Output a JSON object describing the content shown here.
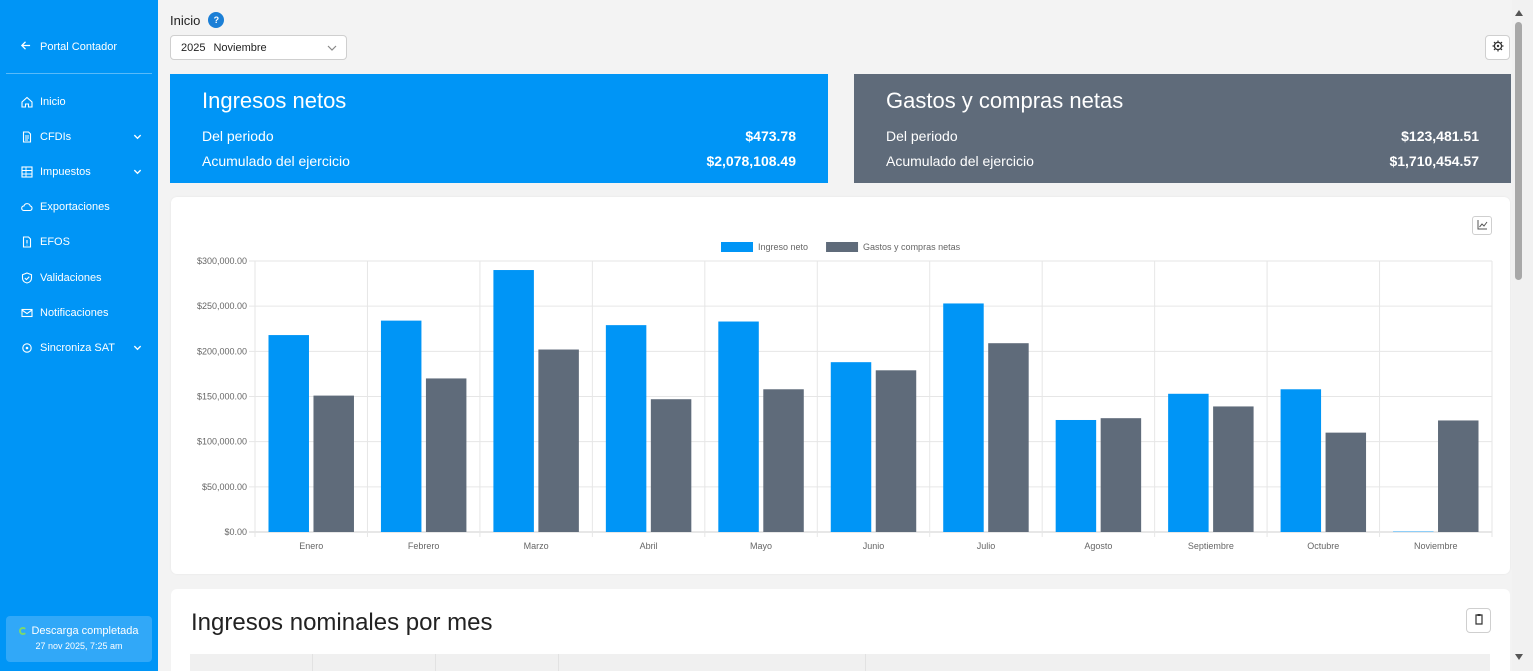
{
  "sidebar": {
    "back_label": "Portal Contador",
    "items": [
      {
        "label": "Inicio",
        "icon": "home-icon",
        "chevron": false
      },
      {
        "label": "CFDIs",
        "icon": "document-icon",
        "chevron": true
      },
      {
        "label": "Impuestos",
        "icon": "grid-icon",
        "chevron": true
      },
      {
        "label": "Exportaciones",
        "icon": "cloud-icon",
        "chevron": false
      },
      {
        "label": "EFOS",
        "icon": "file-alert-icon",
        "chevron": false
      },
      {
        "label": "Validaciones",
        "icon": "shield-check-icon",
        "chevron": false
      },
      {
        "label": "Notificaciones",
        "icon": "mail-icon",
        "chevron": false
      },
      {
        "label": "Sincroniza SAT",
        "icon": "sync-icon",
        "chevron": true
      }
    ],
    "status": {
      "title": "Descarga completada",
      "time": "27 nov 2025, 7:25 am"
    }
  },
  "header": {
    "breadcrumb": "Inicio",
    "help": "?",
    "period_year": "2025",
    "period_month": "Noviembre"
  },
  "cards": {
    "ingresos": {
      "title": "Ingresos netos",
      "periodo_label": "Del periodo",
      "periodo_value": "$473.78",
      "acumulado_label": "Acumulado del ejercicio",
      "acumulado_value": "$2,078,108.49"
    },
    "gastos": {
      "title": "Gastos y compras netas",
      "periodo_label": "Del periodo",
      "periodo_value": "$123,481.51",
      "acumulado_label": "Acumulado del ejercicio",
      "acumulado_value": "$1,710,454.57"
    }
  },
  "colors": {
    "primary": "#0095f6",
    "secondary": "#5f6b7a"
  },
  "chart_data": {
    "type": "bar",
    "categories": [
      "Enero",
      "Febrero",
      "Marzo",
      "Abril",
      "Mayo",
      "Junio",
      "Julio",
      "Agosto",
      "Septiembre",
      "Octubre",
      "Noviembre"
    ],
    "series": [
      {
        "name": "Ingreso neto",
        "color": "#0095f6",
        "values": [
          218000,
          234000,
          290000,
          229000,
          233000,
          188000,
          253000,
          124000,
          153000,
          158000,
          474
        ]
      },
      {
        "name": "Gastos y compras netas",
        "color": "#5f6b7a",
        "values": [
          151000,
          170000,
          202000,
          147000,
          158000,
          179000,
          209000,
          126000,
          139000,
          110000,
          123482
        ]
      }
    ],
    "y_ticks": [
      "$0.00",
      "$50,000.00",
      "$100,000.00",
      "$150,000.00",
      "$200,000.00",
      "$250,000.00",
      "$300,000.00"
    ],
    "ylim": [
      0,
      300000
    ],
    "grid": true,
    "legend": "top-center"
  },
  "bottom": {
    "title": "Ingresos nominales por mes"
  }
}
